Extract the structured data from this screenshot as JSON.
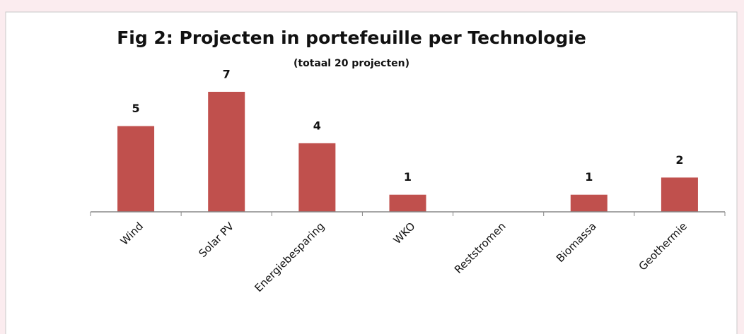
{
  "chart_data": {
    "type": "bar",
    "title": "Fig 2: Projecten in portefeuille per Technologie",
    "subtitle": "(totaal 20 projecten)",
    "categories": [
      "Wind",
      "Solar PV",
      "Energiebesparing",
      "WKO",
      "Reststromen",
      "Biomassa",
      "Geothermie"
    ],
    "values": [
      5,
      7,
      4,
      1,
      0,
      1,
      2
    ],
    "value_labels": [
      "5",
      "7",
      "4",
      "1",
      null,
      "1",
      "2"
    ],
    "color": "#c0504d",
    "ylim": [
      0,
      7
    ]
  }
}
